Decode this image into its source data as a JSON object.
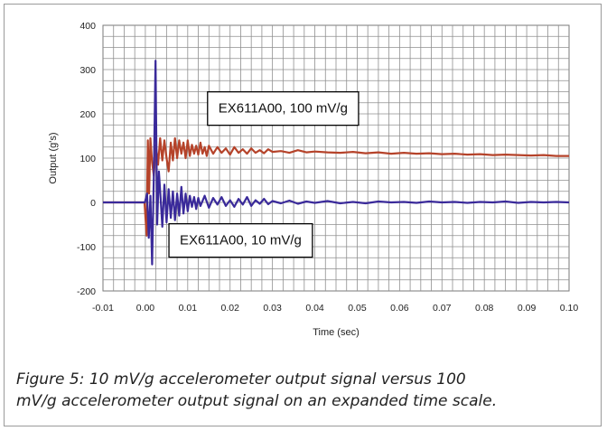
{
  "chart_data": {
    "type": "line",
    "xlabel": "Time (sec)",
    "ylabel": "Output (g's)",
    "xlim": [
      -0.01,
      0.1
    ],
    "ylim": [
      -200,
      400
    ],
    "xticks": [
      "-0.01",
      "0.00",
      "0.01",
      "0.02",
      "0.03",
      "0.04",
      "0.05",
      "0.06",
      "0.07",
      "0.08",
      "0.09",
      "0.10"
    ],
    "yticks": [
      "-200",
      "-100",
      "0",
      "100",
      "200",
      "300",
      "400"
    ],
    "grid": true,
    "series": [
      {
        "color": "#b5432a",
        "x": [
          -0.01,
          -0.0002,
          0.0003,
          0.0006,
          0.0009,
          0.0012,
          0.0016,
          0.002,
          0.0025,
          0.003,
          0.0035,
          0.004,
          0.0045,
          0.005,
          0.0055,
          0.006,
          0.0065,
          0.007,
          0.0075,
          0.008,
          0.0085,
          0.009,
          0.0095,
          0.01,
          0.0105,
          0.011,
          0.0115,
          0.012,
          0.0125,
          0.013,
          0.0135,
          0.014,
          0.0145,
          0.015,
          0.016,
          0.017,
          0.018,
          0.019,
          0.02,
          0.021,
          0.022,
          0.023,
          0.024,
          0.025,
          0.026,
          0.027,
          0.028,
          0.029,
          0.03,
          0.032,
          0.034,
          0.036,
          0.038,
          0.04,
          0.043,
          0.046,
          0.049,
          0.052,
          0.055,
          0.058,
          0.061,
          0.064,
          0.067,
          0.07,
          0.073,
          0.076,
          0.079,
          0.082,
          0.085,
          0.088,
          0.091,
          0.094,
          0.097,
          0.1
        ],
        "y": [
          0,
          0,
          -75,
          140,
          20,
          145,
          90,
          60,
          130,
          85,
          145,
          95,
          140,
          100,
          70,
          135,
          95,
          145,
          100,
          140,
          110,
          135,
          100,
          140,
          105,
          130,
          110,
          128,
          108,
          135,
          110,
          125,
          105,
          128,
          110,
          125,
          112,
          122,
          108,
          125,
          112,
          120,
          110,
          122,
          112,
          118,
          111,
          120,
          114,
          116,
          112,
          118,
          113,
          115,
          113,
          112,
          114,
          111,
          113,
          110,
          112,
          110,
          111,
          109,
          110,
          108,
          109,
          107,
          108,
          107,
          106,
          107,
          105,
          105
        ]
      },
      {
        "color": "#3a2a9a",
        "x": [
          -0.01,
          -0.0001,
          0.0004,
          0.0008,
          0.0012,
          0.0016,
          0.002,
          0.0024,
          0.0028,
          0.0032,
          0.0036,
          0.004,
          0.0045,
          0.005,
          0.0055,
          0.006,
          0.0065,
          0.007,
          0.0075,
          0.008,
          0.0085,
          0.009,
          0.0095,
          0.01,
          0.0105,
          0.011,
          0.0115,
          0.012,
          0.0125,
          0.013,
          0.014,
          0.015,
          0.016,
          0.017,
          0.018,
          0.019,
          0.02,
          0.021,
          0.022,
          0.023,
          0.024,
          0.025,
          0.026,
          0.027,
          0.028,
          0.029,
          0.03,
          0.032,
          0.034,
          0.036,
          0.038,
          0.04,
          0.043,
          0.046,
          0.049,
          0.052,
          0.055,
          0.058,
          0.061,
          0.064,
          0.067,
          0.07,
          0.073,
          0.076,
          0.079,
          0.082,
          0.085,
          0.088,
          0.091,
          0.094,
          0.097,
          0.1
        ],
        "y": [
          0,
          0,
          20,
          -80,
          15,
          -140,
          60,
          320,
          -50,
          70,
          10,
          -55,
          40,
          -45,
          30,
          -35,
          25,
          -40,
          20,
          -30,
          35,
          -25,
          20,
          -20,
          15,
          -10,
          12,
          -15,
          10,
          -8,
          15,
          -12,
          10,
          -5,
          12,
          -8,
          5,
          -10,
          8,
          -5,
          12,
          -8,
          5,
          -3,
          8,
          -4,
          3,
          -2,
          4,
          -3,
          2,
          -1,
          3,
          -2,
          1,
          -2,
          2,
          0,
          1,
          -1,
          2,
          0,
          1,
          -1,
          1,
          0,
          2,
          -1,
          1,
          0,
          1,
          0
        ]
      }
    ],
    "annotations": [
      {
        "text": "EX611A00, 100 mV/g",
        "x": 0.0325,
        "y": 213
      },
      {
        "text": "EX611A00, 10 mV/g",
        "x": 0.0225,
        "y": -85
      }
    ]
  },
  "caption": {
    "line1": "Figure 5: 10 mV/g accelerometer output signal versus 100",
    "line2": "mV/g accelerometer output signal on an expanded time scale."
  }
}
